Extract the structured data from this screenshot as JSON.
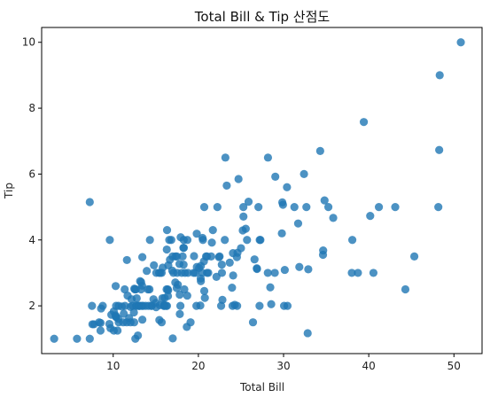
{
  "chart_data": {
    "type": "scatter",
    "title": "Total Bill & Tip 산점도",
    "xlabel": "Total Bill",
    "ylabel": "Tip",
    "xlim": [
      1.6,
      53.3
    ],
    "ylim": [
      0.55,
      10.45
    ],
    "xticks": [
      10,
      20,
      30,
      40,
      50
    ],
    "yticks": [
      2,
      4,
      6,
      8,
      10
    ],
    "grid": false,
    "legend": "none",
    "point_color": "#1f77b4",
    "series": [
      {
        "points": [
          [
            3.07,
            1.0
          ],
          [
            5.75,
            1.0
          ],
          [
            7.25,
            1.0
          ],
          [
            7.25,
            5.15
          ],
          [
            7.51,
            2.0
          ],
          [
            7.56,
            1.44
          ],
          [
            7.74,
            1.44
          ],
          [
            8.35,
            1.5
          ],
          [
            8.51,
            1.25
          ],
          [
            8.52,
            1.48
          ],
          [
            8.58,
            1.92
          ],
          [
            8.77,
            2.0
          ],
          [
            9.55,
            1.45
          ],
          [
            9.6,
            4.0
          ],
          [
            9.68,
            1.32
          ],
          [
            9.78,
            1.73
          ],
          [
            10.07,
            1.83
          ],
          [
            10.07,
            1.25
          ],
          [
            10.27,
            1.71
          ],
          [
            10.29,
            2.6
          ],
          [
            10.33,
            1.67
          ],
          [
            10.34,
            1.66
          ],
          [
            10.34,
            2.0
          ],
          [
            10.51,
            1.25
          ],
          [
            10.59,
            1.61
          ],
          [
            10.63,
            2.0
          ],
          [
            10.65,
            1.5
          ],
          [
            11.02,
            1.98
          ],
          [
            11.17,
            1.5
          ],
          [
            11.24,
            1.76
          ],
          [
            11.35,
            2.5
          ],
          [
            11.38,
            2.0
          ],
          [
            11.59,
            1.5
          ],
          [
            11.61,
            3.39
          ],
          [
            11.69,
            2.31
          ],
          [
            11.87,
            1.63
          ],
          [
            12.02,
            1.97
          ],
          [
            12.03,
            1.5
          ],
          [
            12.16,
            2.2
          ],
          [
            12.26,
            2.0
          ],
          [
            12.43,
            1.8
          ],
          [
            12.46,
            1.5
          ],
          [
            12.48,
            2.52
          ],
          [
            12.54,
            2.5
          ],
          [
            12.6,
            1.0
          ],
          [
            12.66,
            2.5
          ],
          [
            12.69,
            2.0
          ],
          [
            12.74,
            2.01
          ],
          [
            12.76,
            2.23
          ],
          [
            12.9,
            1.1
          ],
          [
            13.0,
            2.0
          ],
          [
            13.03,
            2.0
          ],
          [
            13.13,
            2.0
          ],
          [
            13.16,
            2.75
          ],
          [
            13.27,
            2.5
          ],
          [
            13.28,
            2.72
          ],
          [
            13.37,
            2.0
          ],
          [
            13.39,
            2.61
          ],
          [
            13.42,
            3.48
          ],
          [
            13.42,
            1.58
          ],
          [
            13.51,
            2.0
          ],
          [
            13.81,
            2.0
          ],
          [
            13.94,
            3.06
          ],
          [
            14.07,
            2.5
          ],
          [
            14.15,
            2.0
          ],
          [
            14.26,
            2.5
          ],
          [
            14.31,
            4.0
          ],
          [
            14.48,
            2.0
          ],
          [
            14.52,
            2.0
          ],
          [
            14.73,
            2.2
          ],
          [
            14.78,
            3.23
          ],
          [
            15.01,
            2.09
          ],
          [
            15.04,
            1.96
          ],
          [
            15.06,
            3.0
          ],
          [
            15.38,
            3.0
          ],
          [
            15.42,
            1.57
          ],
          [
            15.48,
            2.02
          ],
          [
            15.53,
            3.0
          ],
          [
            15.69,
            1.5
          ],
          [
            15.69,
            3.0
          ],
          [
            15.77,
            2.23
          ],
          [
            15.81,
            3.16
          ],
          [
            15.95,
            2.0
          ],
          [
            15.98,
            2.03
          ],
          [
            16.0,
            2.0
          ],
          [
            16.04,
            2.24
          ],
          [
            16.21,
            2.0
          ],
          [
            16.27,
            2.5
          ],
          [
            16.29,
            3.71
          ],
          [
            16.31,
            2.0
          ],
          [
            16.32,
            4.3
          ],
          [
            16.4,
            2.5
          ],
          [
            16.43,
            2.3
          ],
          [
            16.45,
            2.47
          ],
          [
            16.47,
            3.23
          ],
          [
            16.58,
            4.0
          ],
          [
            16.66,
            3.4
          ],
          [
            16.82,
            4.0
          ],
          [
            16.93,
            3.07
          ],
          [
            16.97,
            3.5
          ],
          [
            16.99,
            1.01
          ],
          [
            17.07,
            3.0
          ],
          [
            17.29,
            2.71
          ],
          [
            17.31,
            3.5
          ],
          [
            17.46,
            2.54
          ],
          [
            17.47,
            3.5
          ],
          [
            17.51,
            3.0
          ],
          [
            17.59,
            2.64
          ],
          [
            17.78,
            3.27
          ],
          [
            17.81,
            2.34
          ],
          [
            17.82,
            1.75
          ],
          [
            17.89,
            2.0
          ],
          [
            17.92,
            4.08
          ],
          [
            18.04,
            3.0
          ],
          [
            18.15,
            3.5
          ],
          [
            18.24,
            3.76
          ],
          [
            18.26,
            3.25
          ],
          [
            18.28,
            4.0
          ],
          [
            18.29,
            3.76
          ],
          [
            18.35,
            2.5
          ],
          [
            18.43,
            3.0
          ],
          [
            18.64,
            1.36
          ],
          [
            18.69,
            2.31
          ],
          [
            18.71,
            4.0
          ],
          [
            18.78,
            3.0
          ],
          [
            19.08,
            1.5
          ],
          [
            19.44,
            3.0
          ],
          [
            19.49,
            3.51
          ],
          [
            19.65,
            3.0
          ],
          [
            19.77,
            2.0
          ],
          [
            19.81,
            4.19
          ],
          [
            19.82,
            3.18
          ],
          [
            20.08,
            3.15
          ],
          [
            20.23,
            2.01
          ],
          [
            20.27,
            2.83
          ],
          [
            20.29,
            2.75
          ],
          [
            20.29,
            3.21
          ],
          [
            20.45,
            3.0
          ],
          [
            20.49,
            4.06
          ],
          [
            20.53,
            4.0
          ],
          [
            20.65,
            3.35
          ],
          [
            20.69,
            2.45
          ],
          [
            20.69,
            5.0
          ],
          [
            20.76,
            2.24
          ],
          [
            20.9,
            3.5
          ],
          [
            21.01,
            3.5
          ],
          [
            21.01,
            3.0
          ],
          [
            21.16,
            3.0
          ],
          [
            21.5,
            3.5
          ],
          [
            21.58,
            3.92
          ],
          [
            21.7,
            4.3
          ],
          [
            22.12,
            2.88
          ],
          [
            22.23,
            5.0
          ],
          [
            22.42,
            3.48
          ],
          [
            22.49,
            3.5
          ],
          [
            22.67,
            2.0
          ],
          [
            22.75,
            3.25
          ],
          [
            22.76,
            3.0
          ],
          [
            22.82,
            2.18
          ],
          [
            23.1,
            4.0
          ],
          [
            23.17,
            6.5
          ],
          [
            23.33,
            5.65
          ],
          [
            23.68,
            3.31
          ],
          [
            23.95,
            2.55
          ],
          [
            24.01,
            2.0
          ],
          [
            24.06,
            3.6
          ],
          [
            24.08,
            2.92
          ],
          [
            24.27,
            2.03
          ],
          [
            24.52,
            3.48
          ],
          [
            24.55,
            2.0
          ],
          [
            24.59,
            3.61
          ],
          [
            24.71,
            5.85
          ],
          [
            25.0,
            3.75
          ],
          [
            25.21,
            4.29
          ],
          [
            25.28,
            5.0
          ],
          [
            25.29,
            4.71
          ],
          [
            25.56,
            4.34
          ],
          [
            25.71,
            4.0
          ],
          [
            25.89,
            5.16
          ],
          [
            26.41,
            1.5
          ],
          [
            26.59,
            3.41
          ],
          [
            26.86,
            3.14
          ],
          [
            26.88,
            3.12
          ],
          [
            27.05,
            5.0
          ],
          [
            27.18,
            2.0
          ],
          [
            27.2,
            4.0
          ],
          [
            27.28,
            4.0
          ],
          [
            28.15,
            3.0
          ],
          [
            28.17,
            6.5
          ],
          [
            28.44,
            2.56
          ],
          [
            28.55,
            2.05
          ],
          [
            28.97,
            3.0
          ],
          [
            29.03,
            5.92
          ],
          [
            29.8,
            4.2
          ],
          [
            29.85,
            5.14
          ],
          [
            29.93,
            5.07
          ],
          [
            30.06,
            2.0
          ],
          [
            30.14,
            3.09
          ],
          [
            30.4,
            5.6
          ],
          [
            30.46,
            2.0
          ],
          [
            31.27,
            5.0
          ],
          [
            31.71,
            4.5
          ],
          [
            31.85,
            3.18
          ],
          [
            32.4,
            6.0
          ],
          [
            32.68,
            5.0
          ],
          [
            32.83,
            1.17
          ],
          [
            32.9,
            3.11
          ],
          [
            34.3,
            6.7
          ],
          [
            34.63,
            3.55
          ],
          [
            34.65,
            3.68
          ],
          [
            34.81,
            5.2
          ],
          [
            35.26,
            5.0
          ],
          [
            35.83,
            4.67
          ],
          [
            38.01,
            3.0
          ],
          [
            38.07,
            4.0
          ],
          [
            38.73,
            3.0
          ],
          [
            39.42,
            7.58
          ],
          [
            40.17,
            4.73
          ],
          [
            40.55,
            3.0
          ],
          [
            41.19,
            5.0
          ],
          [
            43.11,
            5.0
          ],
          [
            44.3,
            2.5
          ],
          [
            45.35,
            3.5
          ],
          [
            48.17,
            5.0
          ],
          [
            48.27,
            6.73
          ],
          [
            48.33,
            9.0
          ],
          [
            50.81,
            10.0
          ]
        ]
      }
    ]
  }
}
